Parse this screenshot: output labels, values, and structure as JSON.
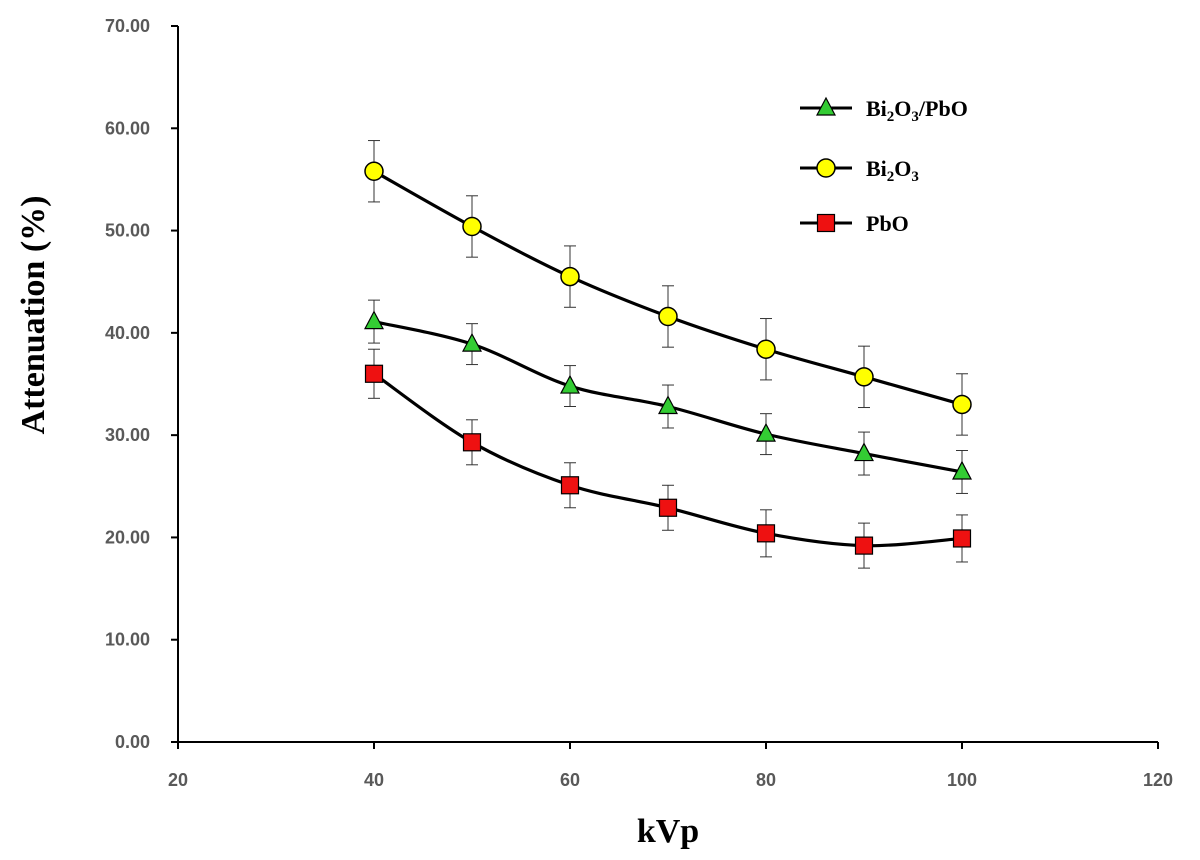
{
  "chart_data": {
    "type": "line",
    "xlabel": "kVp",
    "ylabel": "Attenuation  (%)",
    "xlim": [
      20,
      120
    ],
    "ylim": [
      0,
      70
    ],
    "xticks": [
      "20",
      "40",
      "60",
      "80",
      "100",
      "120"
    ],
    "yticks": [
      "0.00",
      "10.00",
      "20.00",
      "30.00",
      "40.00",
      "50.00",
      "60.00",
      "70.00"
    ],
    "grid": false,
    "legend_position": "top-right",
    "x": [
      40,
      50,
      60,
      70,
      80,
      90,
      100
    ],
    "series": [
      {
        "name": "Bi2O3/PbO",
        "legend_parts": [
          [
            "Bi",
            ""
          ],
          [
            "2",
            "sub"
          ],
          [
            "O",
            ""
          ],
          [
            "3",
            "sub"
          ],
          [
            "/PbO",
            ""
          ]
        ],
        "marker": "triangle",
        "color": "#33cc33",
        "values": [
          41.1,
          38.9,
          34.8,
          32.8,
          30.1,
          28.2,
          26.4
        ],
        "errors": [
          2.1,
          2.0,
          2.0,
          2.1,
          2.0,
          2.1,
          2.1
        ]
      },
      {
        "name": "Bi2O3",
        "legend_parts": [
          [
            "Bi",
            ""
          ],
          [
            "2",
            "sub"
          ],
          [
            "O",
            ""
          ],
          [
            "3",
            "sub"
          ]
        ],
        "marker": "circle",
        "color": "#ffff00",
        "values": [
          55.8,
          50.4,
          45.5,
          41.6,
          38.4,
          35.7,
          33.0
        ],
        "errors": [
          3.0,
          3.0,
          3.0,
          3.0,
          3.0,
          3.0,
          3.0
        ]
      },
      {
        "name": "PbO",
        "legend_parts": [
          [
            "PbO",
            ""
          ]
        ],
        "marker": "square",
        "color": "#ee1111",
        "values": [
          36.0,
          29.3,
          25.1,
          22.9,
          20.4,
          19.2,
          19.9
        ],
        "errors": [
          2.4,
          2.2,
          2.2,
          2.2,
          2.3,
          2.2,
          2.3
        ]
      }
    ]
  }
}
